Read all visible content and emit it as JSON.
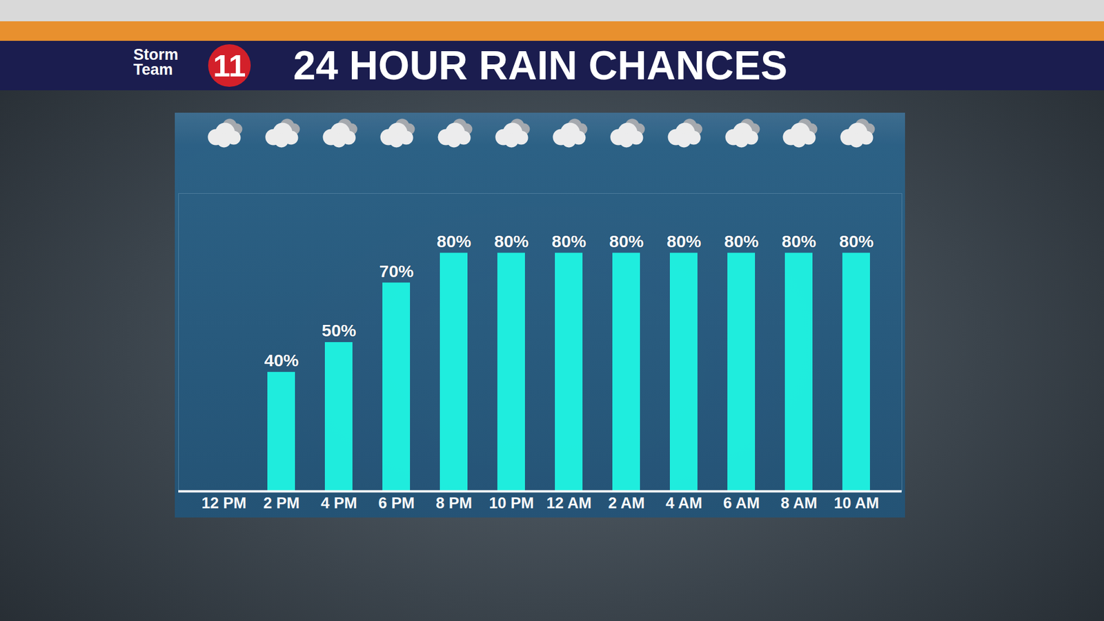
{
  "chart_data": {
    "type": "bar",
    "title": "24 HOUR RAIN CHANCES",
    "annotations": [
      "Storm",
      "Team",
      "11"
    ],
    "categories": [
      "12 PM",
      "2 PM",
      "4 PM",
      "6 PM",
      "8 PM",
      "10 PM",
      "12 AM",
      "2 AM",
      "4 AM",
      "6 AM",
      "8 AM",
      "10 AM"
    ],
    "values": [
      null,
      40,
      50,
      70,
      80,
      80,
      80,
      80,
      80,
      80,
      80,
      80
    ],
    "value_labels": [
      null,
      "40%",
      "50%",
      "70%",
      "80%",
      "80%",
      "80%",
      "80%",
      "80%",
      "80%",
      "80%",
      "80%"
    ],
    "color": "#1ef2e2",
    "ylim": [
      0,
      100
    ],
    "grid": false,
    "data_labels": true,
    "tick_labels": "x"
  }
}
